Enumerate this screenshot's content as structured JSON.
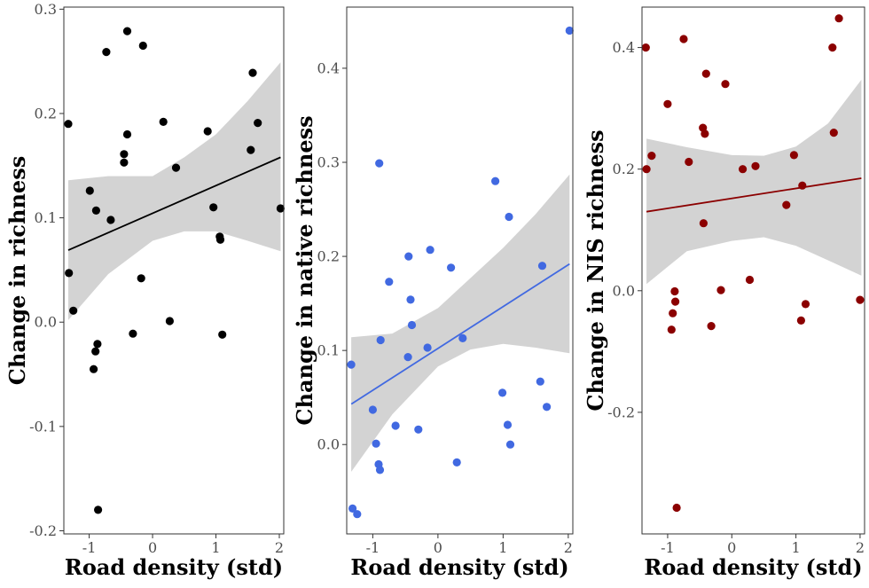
{
  "chart_data": [
    {
      "type": "scatter",
      "xlabel": "Road density (std)",
      "ylabel": "Change in richness",
      "xlim": [
        -1.4,
        2.07
      ],
      "ylim": [
        -0.203,
        0.302
      ],
      "xticks": [
        {
          "value": -1,
          "label": "-1"
        },
        {
          "value": 0,
          "label": "0"
        },
        {
          "value": 1,
          "label": "1"
        },
        {
          "value": 2,
          "label": "2"
        }
      ],
      "yticks": [
        {
          "value": -0.2,
          "label": "-0.2"
        },
        {
          "value": -0.1,
          "label": "-0.1"
        },
        {
          "value": 0.0,
          "label": "0.0"
        },
        {
          "value": 0.1,
          "label": "0.1"
        },
        {
          "value": 0.2,
          "label": "0.2"
        },
        {
          "value": 0.3,
          "label": "0.3"
        }
      ],
      "color": "#000000",
      "band_color": "#d3d3d3",
      "grid": false,
      "points": [
        {
          "x": -1.33,
          "y": 0.19
        },
        {
          "x": -1.32,
          "y": 0.047
        },
        {
          "x": -1.25,
          "y": 0.011
        },
        {
          "x": -0.99,
          "y": 0.126
        },
        {
          "x": -0.93,
          "y": -0.045
        },
        {
          "x": -0.9,
          "y": -0.028
        },
        {
          "x": -0.89,
          "y": 0.107
        },
        {
          "x": -0.87,
          "y": -0.021
        },
        {
          "x": -0.86,
          "y": -0.18
        },
        {
          "x": -0.73,
          "y": 0.259
        },
        {
          "x": -0.66,
          "y": 0.098
        },
        {
          "x": -0.45,
          "y": 0.161
        },
        {
          "x": -0.45,
          "y": 0.153
        },
        {
          "x": -0.4,
          "y": 0.18
        },
        {
          "x": -0.4,
          "y": 0.279
        },
        {
          "x": -0.31,
          "y": -0.011
        },
        {
          "x": -0.18,
          "y": 0.042
        },
        {
          "x": -0.15,
          "y": 0.265
        },
        {
          "x": 0.17,
          "y": 0.192
        },
        {
          "x": 0.27,
          "y": 0.001
        },
        {
          "x": 0.37,
          "y": 0.148
        },
        {
          "x": 0.87,
          "y": 0.183
        },
        {
          "x": 0.96,
          "y": 0.11
        },
        {
          "x": 1.06,
          "y": 0.082
        },
        {
          "x": 1.07,
          "y": 0.079
        },
        {
          "x": 1.1,
          "y": -0.012
        },
        {
          "x": 1.55,
          "y": 0.165
        },
        {
          "x": 1.58,
          "y": 0.239
        },
        {
          "x": 1.66,
          "y": 0.191
        },
        {
          "x": 2.02,
          "y": 0.109
        }
      ],
      "fit": {
        "x": [
          -1.33,
          2.02
        ],
        "y": [
          0.069,
          0.158
        ]
      },
      "ci": {
        "x": [
          -1.33,
          -0.7,
          0,
          0.5,
          1.0,
          1.5,
          2.02
        ],
        "lower": [
          0.002,
          0.046,
          0.078,
          0.087,
          0.087,
          0.078,
          0.068
        ],
        "upper": [
          0.136,
          0.14,
          0.14,
          0.158,
          0.18,
          0.212,
          0.249
        ]
      }
    },
    {
      "type": "scatter",
      "xlabel": "Road density (std)",
      "ylabel": "Change in native richness",
      "xlim": [
        -1.4,
        2.07
      ],
      "ylim": [
        -0.095,
        0.465
      ],
      "xticks": [
        {
          "value": -1,
          "label": "-1"
        },
        {
          "value": 0,
          "label": "0"
        },
        {
          "value": 1,
          "label": "1"
        },
        {
          "value": 2,
          "label": "2"
        }
      ],
      "yticks": [
        {
          "value": 0.0,
          "label": "0.0"
        },
        {
          "value": 0.1,
          "label": "0.1"
        },
        {
          "value": 0.2,
          "label": "0.2"
        },
        {
          "value": 0.3,
          "label": "0.3"
        },
        {
          "value": 0.4,
          "label": "0.4"
        }
      ],
      "color": "#4169e1",
      "band_color": "#d3d3d3",
      "grid": false,
      "points": [
        {
          "x": -1.33,
          "y": 0.085
        },
        {
          "x": -1.31,
          "y": -0.068
        },
        {
          "x": -1.24,
          "y": -0.074
        },
        {
          "x": -1.0,
          "y": 0.037
        },
        {
          "x": -0.95,
          "y": 0.001
        },
        {
          "x": -0.91,
          "y": -0.021
        },
        {
          "x": -0.89,
          "y": -0.027
        },
        {
          "x": -0.88,
          "y": 0.111
        },
        {
          "x": -0.9,
          "y": 0.299
        },
        {
          "x": -0.75,
          "y": 0.173
        },
        {
          "x": -0.65,
          "y": 0.02
        },
        {
          "x": -0.46,
          "y": 0.093
        },
        {
          "x": -0.45,
          "y": 0.2
        },
        {
          "x": -0.42,
          "y": 0.154
        },
        {
          "x": -0.4,
          "y": 0.127
        },
        {
          "x": -0.3,
          "y": 0.016
        },
        {
          "x": -0.16,
          "y": 0.103
        },
        {
          "x": -0.12,
          "y": 0.207
        },
        {
          "x": 0.2,
          "y": 0.188
        },
        {
          "x": 0.29,
          "y": -0.019
        },
        {
          "x": 0.38,
          "y": 0.113
        },
        {
          "x": 0.88,
          "y": 0.28
        },
        {
          "x": 0.99,
          "y": 0.055
        },
        {
          "x": 1.07,
          "y": 0.021
        },
        {
          "x": 1.09,
          "y": 0.242
        },
        {
          "x": 1.11,
          "y": 0.0
        },
        {
          "x": 1.57,
          "y": 0.067
        },
        {
          "x": 1.6,
          "y": 0.19
        },
        {
          "x": 1.67,
          "y": 0.04
        },
        {
          "x": 2.02,
          "y": 0.44
        }
      ],
      "fit": {
        "x": [
          -1.33,
          2.02
        ],
        "y": [
          0.043,
          0.192
        ]
      },
      "ci": {
        "x": [
          -1.33,
          -0.7,
          0,
          0.5,
          1.0,
          1.5,
          2.02
        ],
        "lower": [
          -0.029,
          0.032,
          0.083,
          0.101,
          0.107,
          0.103,
          0.097
        ],
        "upper": [
          0.114,
          0.118,
          0.145,
          0.177,
          0.209,
          0.245,
          0.287
        ]
      }
    },
    {
      "type": "scatter",
      "xlabel": "Road density (std)",
      "ylabel": "Change in NIS richness",
      "xlim": [
        -1.4,
        2.07
      ],
      "ylim": [
        -0.4,
        0.4665
      ],
      "xticks": [
        {
          "value": -1,
          "label": "-1"
        },
        {
          "value": 0,
          "label": "0"
        },
        {
          "value": 1,
          "label": "1"
        },
        {
          "value": 2,
          "label": "2"
        }
      ],
      "yticks": [
        {
          "value": -0.2,
          "label": "-0.2"
        },
        {
          "value": 0.0,
          "label": "0.0"
        },
        {
          "value": 0.2,
          "label": "0.2"
        },
        {
          "value": 0.4,
          "label": "0.4"
        }
      ],
      "color": "#8b0000",
      "band_color": "#d3d3d3",
      "grid": false,
      "points": [
        {
          "x": -1.34,
          "y": 0.4
        },
        {
          "x": -1.33,
          "y": 0.2
        },
        {
          "x": -1.25,
          "y": 0.222
        },
        {
          "x": -1.0,
          "y": 0.307
        },
        {
          "x": -0.92,
          "y": -0.037
        },
        {
          "x": -0.89,
          "y": -0.001
        },
        {
          "x": -0.88,
          "y": -0.018
        },
        {
          "x": -0.86,
          "y": -0.357
        },
        {
          "x": -0.94,
          "y": -0.064
        },
        {
          "x": -0.75,
          "y": 0.414
        },
        {
          "x": -0.67,
          "y": 0.212
        },
        {
          "x": -0.45,
          "y": 0.268
        },
        {
          "x": -0.42,
          "y": 0.258
        },
        {
          "x": -0.44,
          "y": 0.111
        },
        {
          "x": -0.4,
          "y": 0.357
        },
        {
          "x": -0.32,
          "y": -0.058
        },
        {
          "x": -0.17,
          "y": 0.001
        },
        {
          "x": -0.1,
          "y": 0.34
        },
        {
          "x": 0.17,
          "y": 0.2
        },
        {
          "x": 0.28,
          "y": 0.018
        },
        {
          "x": 0.37,
          "y": 0.205
        },
        {
          "x": 0.85,
          "y": 0.141
        },
        {
          "x": 0.97,
          "y": 0.223
        },
        {
          "x": 1.08,
          "y": -0.049
        },
        {
          "x": 1.1,
          "y": 0.173
        },
        {
          "x": 1.15,
          "y": -0.022
        },
        {
          "x": 1.57,
          "y": 0.4
        },
        {
          "x": 1.59,
          "y": 0.26
        },
        {
          "x": 1.67,
          "y": 0.448
        },
        {
          "x": 2.0,
          "y": -0.015
        }
      ],
      "fit": {
        "x": [
          -1.33,
          2.02
        ],
        "y": [
          0.13,
          0.185
        ]
      },
      "ci": {
        "x": [
          -1.33,
          -0.7,
          0,
          0.5,
          1.0,
          1.5,
          2.02
        ],
        "lower": [
          0.011,
          0.065,
          0.082,
          0.088,
          0.074,
          0.05,
          0.025
        ],
        "upper": [
          0.25,
          0.236,
          0.223,
          0.222,
          0.237,
          0.275,
          0.347
        ]
      }
    }
  ]
}
